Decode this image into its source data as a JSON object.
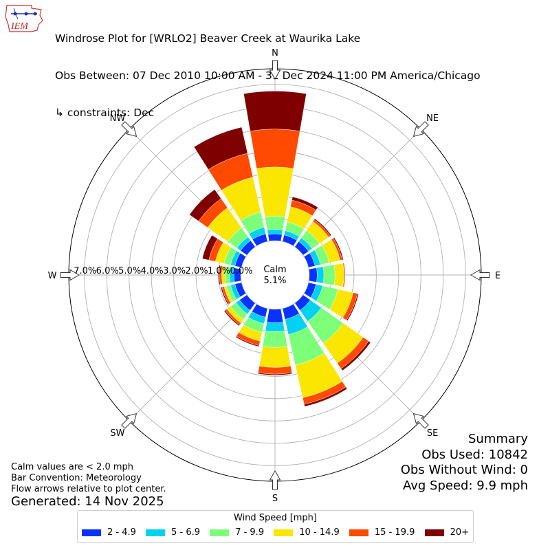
{
  "logo": {
    "text": "IEM"
  },
  "title": {
    "line1": "Windrose Plot for [WRLO2] Beaver Creek at Waurika Lake",
    "line2": "Obs Between: 07 Dec 2010 10:00 AM - 31 Dec 2024 11:00 PM America/Chicago",
    "line3": "↳ constraints: Dec"
  },
  "summary": {
    "heading": "Summary",
    "obs_used": "Obs Used: 10842",
    "obs_without_wind": "Obs Without Wind: 0",
    "avg_speed": "Avg Speed: 9.9 mph"
  },
  "notes": {
    "calm_note": "Calm values are < 2.0 mph",
    "bar_convention": "Bar Convention: Meteorology",
    "flow_note": "Flow arrows relative to plot center."
  },
  "generated": "Generated: 14 Nov 2025",
  "calm": {
    "label": "Calm",
    "value": "5.1%"
  },
  "legend": {
    "title": "Wind Speed [mph]",
    "items": [
      {
        "label": "2 - 4.9",
        "color": "#0a32ff"
      },
      {
        "label": "5 - 6.9",
        "color": "#00d2f0"
      },
      {
        "label": "7 - 9.9",
        "color": "#7dff7a"
      },
      {
        "label": "10 - 14.9",
        "color": "#fae600"
      },
      {
        "label": "15 - 19.9",
        "color": "#ff4a00"
      },
      {
        "label": "20+",
        "color": "#7f0000"
      }
    ]
  },
  "chart_data": {
    "type": "windrose",
    "directions": [
      "N",
      "NNE",
      "NE",
      "ENE",
      "E",
      "ESE",
      "SE",
      "SSE",
      "S",
      "SSW",
      "SW",
      "WSW",
      "W",
      "WNW",
      "NW",
      "NNW"
    ],
    "direction_labels": [
      "N",
      "NE",
      "E",
      "SE",
      "S",
      "SW",
      "W",
      "NW"
    ],
    "speed_bins": [
      "2 - 4.9",
      "5 - 6.9",
      "7 - 9.9",
      "10 - 14.9",
      "15 - 19.9",
      "20+"
    ],
    "radial_tick_labels": [
      "0.0%",
      "1.0%",
      "2.0%",
      "3.0%",
      "4.0%",
      "5.0%",
      "6.0%",
      "7.0%"
    ],
    "radial_ticks": [
      0,
      1,
      2,
      3,
      4,
      5,
      6,
      7
    ],
    "radial_max": 7.7,
    "calm_percent": 5.1,
    "units": "percent",
    "frequencies": [
      [
        0.3,
        0.2,
        0.6,
        2.2,
        1.7,
        1.7
      ],
      [
        0.3,
        0.2,
        0.4,
        0.7,
        0.3,
        0.15
      ],
      [
        0.3,
        0.2,
        0.4,
        0.5,
        0.1,
        0.05
      ],
      [
        0.3,
        0.25,
        0.4,
        0.5,
        0.1,
        0.05
      ],
      [
        0.35,
        0.3,
        0.5,
        0.4,
        0.05,
        0.0
      ],
      [
        0.35,
        0.3,
        0.7,
        0.7,
        0.2,
        0.05
      ],
      [
        0.4,
        0.6,
        1.2,
        1.1,
        0.3,
        0.1
      ],
      [
        0.5,
        0.7,
        1.4,
        1.5,
        0.3,
        0.1
      ],
      [
        0.6,
        0.4,
        0.7,
        0.9,
        0.3,
        0.05
      ],
      [
        0.4,
        0.3,
        0.4,
        0.4,
        0.2,
        0.05
      ],
      [
        0.4,
        0.2,
        0.3,
        0.2,
        0.1,
        0.05
      ],
      [
        0.3,
        0.2,
        0.2,
        0.1,
        0.1,
        0.05
      ],
      [
        0.3,
        0.2,
        0.2,
        0.15,
        0.1,
        0.05
      ],
      [
        0.3,
        0.2,
        0.3,
        0.4,
        0.3,
        0.3
      ],
      [
        0.35,
        0.2,
        0.5,
        1.1,
        0.5,
        0.5
      ],
      [
        0.35,
        0.3,
        0.7,
        1.6,
        1.1,
        1.2
      ]
    ]
  }
}
